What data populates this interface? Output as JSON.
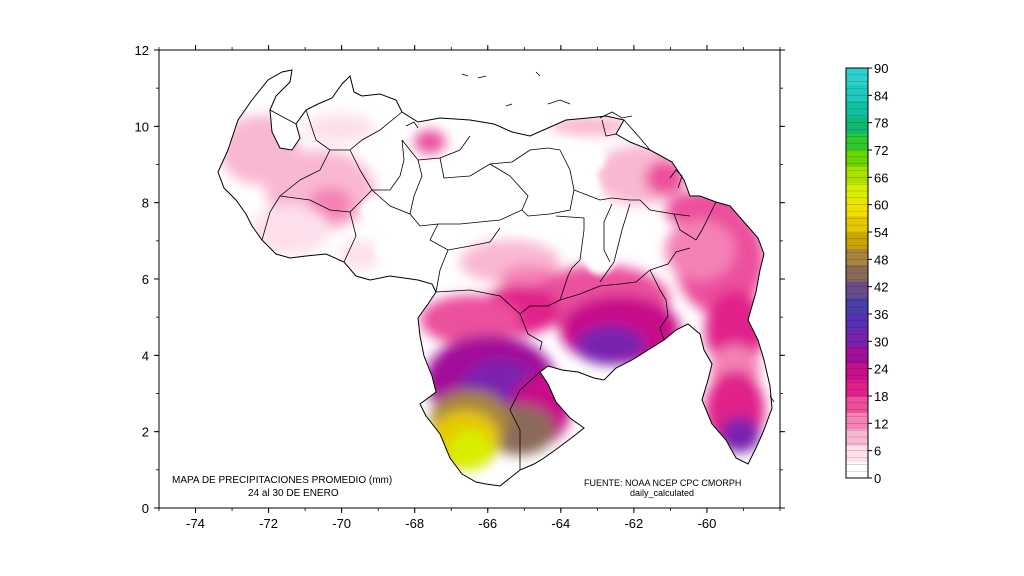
{
  "map": {
    "title_line1": "MAPA DE PRECIPITACIONES PROMEDIO (mm)",
    "title_line2": "24 al 30 DE ENERO",
    "source_line1": "FUENTE: NOAA NCEP CPC CMORPH",
    "source_line2": "daily_calculated",
    "x_ticks": [
      "-74",
      "-72",
      "-70",
      "-68",
      "-66",
      "-64",
      "-62",
      "-60"
    ],
    "y_ticks": [
      "0",
      "2",
      "4",
      "6",
      "8",
      "10",
      "12"
    ],
    "x_range": [
      -75,
      -58
    ],
    "y_range": [
      0,
      12
    ]
  },
  "colorbar": {
    "ticks": [
      "0",
      "6",
      "12",
      "18",
      "24",
      "30",
      "36",
      "42",
      "48",
      "54",
      "60",
      "66",
      "72",
      "78",
      "84",
      "90"
    ],
    "colors": [
      "#ffffff",
      "#fde0ec",
      "#f9b8d2",
      "#f482b6",
      "#ec4f9d",
      "#e0208a",
      "#c8108a",
      "#a20f9a",
      "#7a22b0",
      "#5a2fb8",
      "#4a3fa8",
      "#6b4c8a",
      "#8a6a5a",
      "#a8843c",
      "#c9a400",
      "#e6c800",
      "#f0e000",
      "#d8ef00",
      "#a8e000",
      "#6ad400",
      "#30c830",
      "#10b870",
      "#10c0a0",
      "#20c8c0",
      "#30d0d0"
    ]
  }
}
